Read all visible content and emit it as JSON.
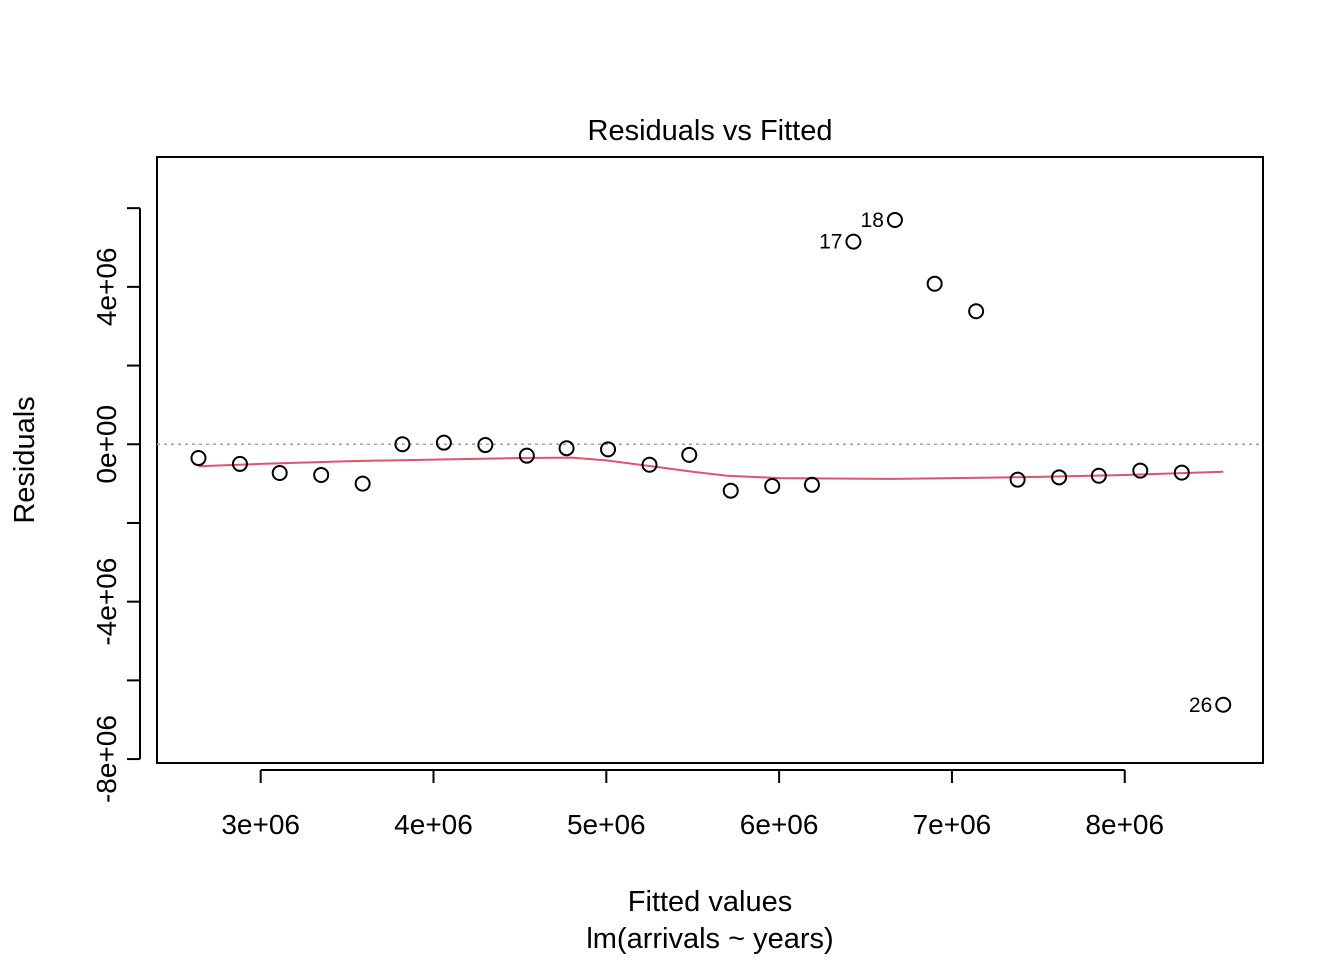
{
  "chart_data": {
    "type": "scatter",
    "title": "Residuals vs Fitted",
    "xlabel": "Fitted values",
    "subtitle": "lm(arrivals ~ years)",
    "ylabel": "Residuals",
    "xlim": [
      2400000,
      8800000
    ],
    "ylim": [
      -8100000,
      7300000
    ],
    "x_ticks": [
      3000000,
      4000000,
      5000000,
      6000000,
      7000000,
      8000000
    ],
    "x_tick_labels": [
      "3e+06",
      "4e+06",
      "5e+06",
      "6e+06",
      "7e+06",
      "8e+06"
    ],
    "y_ticks": [
      -8000000,
      -6000000,
      -4000000,
      -2000000,
      0,
      2000000,
      4000000,
      6000000
    ],
    "y_tick_labels": [
      "-8e+06",
      "",
      "-4e+06",
      "",
      "0e+00",
      "",
      "4e+06",
      ""
    ],
    "reference_line": {
      "y": 0,
      "style": "dotted",
      "color": "#a0a0a0"
    },
    "smooth_color": "#df536b",
    "points": [
      {
        "x": 2640000,
        "y": -350000
      },
      {
        "x": 2880000,
        "y": -500000
      },
      {
        "x": 3110000,
        "y": -730000
      },
      {
        "x": 3350000,
        "y": -780000
      },
      {
        "x": 3590000,
        "y": -1000000
      },
      {
        "x": 3820000,
        "y": 0
      },
      {
        "x": 4060000,
        "y": 40000
      },
      {
        "x": 4300000,
        "y": -20000
      },
      {
        "x": 4540000,
        "y": -290000
      },
      {
        "x": 4770000,
        "y": -100000
      },
      {
        "x": 5010000,
        "y": -130000
      },
      {
        "x": 5250000,
        "y": -520000
      },
      {
        "x": 5480000,
        "y": -270000
      },
      {
        "x": 5720000,
        "y": -1180000
      },
      {
        "x": 5960000,
        "y": -1060000
      },
      {
        "x": 6190000,
        "y": -1030000
      },
      {
        "x": 6430000,
        "y": 5150000,
        "label": "17"
      },
      {
        "x": 6670000,
        "y": 5700000,
        "label": "18"
      },
      {
        "x": 6900000,
        "y": 4080000
      },
      {
        "x": 7140000,
        "y": 3380000
      },
      {
        "x": 7380000,
        "y": -900000
      },
      {
        "x": 7620000,
        "y": -840000
      },
      {
        "x": 7850000,
        "y": -800000
      },
      {
        "x": 8090000,
        "y": -670000
      },
      {
        "x": 8330000,
        "y": -720000
      },
      {
        "x": 8570000,
        "y": -6620000,
        "label": "26"
      }
    ],
    "smooth": {
      "x": [
        2640000,
        3000000,
        3500000,
        4000000,
        4500000,
        4800000,
        5000000,
        5300000,
        5500000,
        5700000,
        6000000,
        6300000,
        6670000,
        7000000,
        7500000,
        8000000,
        8570000
      ],
      "y": [
        -560000,
        -500000,
        -430000,
        -390000,
        -350000,
        -340000,
        -410000,
        -580000,
        -700000,
        -800000,
        -860000,
        -870000,
        -880000,
        -860000,
        -830000,
        -780000,
        -700000
      ]
    }
  }
}
